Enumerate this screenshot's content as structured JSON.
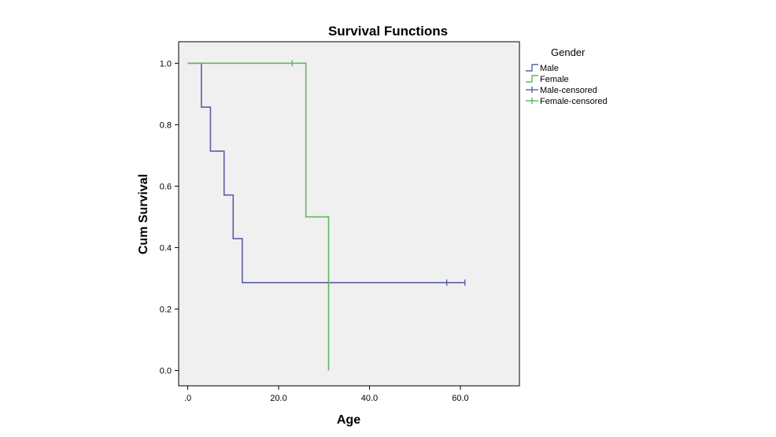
{
  "chart_data": {
    "type": "line",
    "title": "Survival Functions",
    "xlabel": "Age",
    "ylabel": "Cum Survival",
    "xlim": [
      -2,
      73
    ],
    "ylim": [
      -0.05,
      1.07
    ],
    "x_ticks": [
      {
        "value": 0,
        "label": ".0"
      },
      {
        "value": 20,
        "label": "20.0"
      },
      {
        "value": 40,
        "label": "40.0"
      },
      {
        "value": 60,
        "label": "60.0"
      }
    ],
    "y_ticks": [
      {
        "value": 0,
        "label": "0.0"
      },
      {
        "value": 0.2,
        "label": "0.2"
      },
      {
        "value": 0.4,
        "label": "0.4"
      },
      {
        "value": 0.6,
        "label": "0.6"
      },
      {
        "value": 0.8,
        "label": "0.8"
      },
      {
        "value": 1.0,
        "label": "1.0"
      }
    ],
    "grid": false,
    "legend_position": "right",
    "legend_title": "Gender",
    "plot_background": "#f0f0f0",
    "series": [
      {
        "name": "Male",
        "color": "#5a5fa5",
        "steps": [
          [
            0,
            1.0
          ],
          [
            3,
            0.857
          ],
          [
            5,
            0.714
          ],
          [
            8,
            0.571
          ],
          [
            10,
            0.429
          ],
          [
            12,
            0.286
          ],
          [
            61,
            0.286
          ]
        ],
        "censored": [
          [
            57,
            0.286
          ],
          [
            61,
            0.286
          ]
        ]
      },
      {
        "name": "Female",
        "color": "#5db85d",
        "steps": [
          [
            0,
            1.0
          ],
          [
            26,
            0.5
          ],
          [
            31,
            0.0
          ]
        ],
        "censored": [
          [
            23,
            1.0
          ]
        ]
      }
    ],
    "legend": [
      {
        "label": "Male",
        "kind": "step",
        "color": "#5a5fa5"
      },
      {
        "label": "Female",
        "kind": "step",
        "color": "#5db85d"
      },
      {
        "label": "Male-censored",
        "kind": "cross",
        "color": "#5a5fa5"
      },
      {
        "label": "Female-censored",
        "kind": "cross",
        "color": "#5db85d"
      }
    ]
  }
}
